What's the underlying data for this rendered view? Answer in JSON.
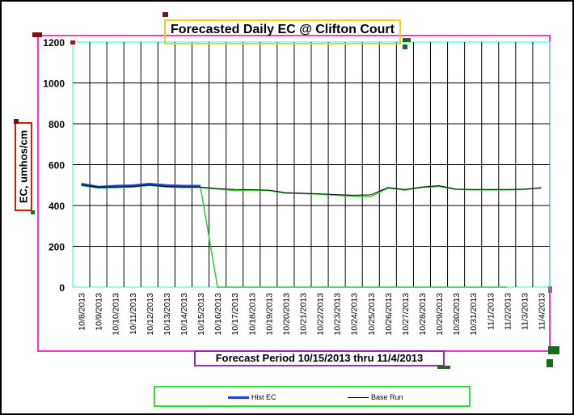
{
  "chart_data": {
    "type": "line",
    "title": "Forecasted Daily EC  @ Clifton Court",
    "xlabel": "Forecast Period 10/15/2013 thru 11/4/2013",
    "ylabel": "EC, umhos/cm",
    "ylim": [
      0,
      1200
    ],
    "yticks": [
      0,
      200,
      400,
      600,
      800,
      1000,
      1200
    ],
    "grid": true,
    "legend_position": "bottom",
    "categories": [
      "10/8/2013",
      "10/9/2013",
      "10/10/2013",
      "10/11/2013",
      "10/12/2013",
      "10/13/2013",
      "10/14/2013",
      "10/15/2013",
      "10/16/2013",
      "10/17/2013",
      "10/18/2013",
      "10/19/2013",
      "10/20/2013",
      "10/21/2013",
      "10/22/2013",
      "10/23/2013",
      "10/24/2013",
      "10/25/2013",
      "10/26/2013",
      "10/27/2013",
      "10/28/2013",
      "10/29/2013",
      "10/30/2013",
      "10/31/2013",
      "11/1/2013",
      "11/2/2013",
      "11/3/2013",
      "11/4/2013"
    ],
    "series": [
      {
        "name": "Hist EC",
        "color": "#1f3fdf",
        "values": [
          505,
          490,
          495,
          497,
          505,
          498,
          495,
          495,
          null,
          null,
          null,
          null,
          null,
          null,
          null,
          null,
          null,
          null,
          null,
          null,
          null,
          null,
          null,
          null,
          null,
          null,
          null,
          null
        ]
      },
      {
        "name": "Base Run",
        "color": "#000000",
        "values": [
          500,
          490,
          490,
          492,
          500,
          492,
          490,
          490,
          483,
          478,
          477,
          475,
          463,
          460,
          457,
          453,
          450,
          452,
          488,
          478,
          490,
          497,
          480,
          478,
          478,
          478,
          480,
          485
        ]
      },
      {
        "name": "",
        "color": "#33cc33",
        "values": [
          497,
          485,
          487,
          490,
          498,
          490,
          488,
          488,
          480,
          473,
          475,
          473,
          460,
          458,
          455,
          450,
          445,
          443,
          485,
          475,
          488,
          493,
          478,
          476,
          476,
          476,
          478,
          488
        ]
      },
      {
        "name": "",
        "color": "#33cc33",
        "values": [
          null,
          null,
          null,
          null,
          null,
          null,
          null,
          488,
          0,
          0,
          0,
          0,
          0,
          0,
          0,
          0,
          0,
          0,
          0,
          0,
          0,
          0,
          0,
          0,
          0,
          0,
          null,
          null
        ]
      }
    ]
  }
}
